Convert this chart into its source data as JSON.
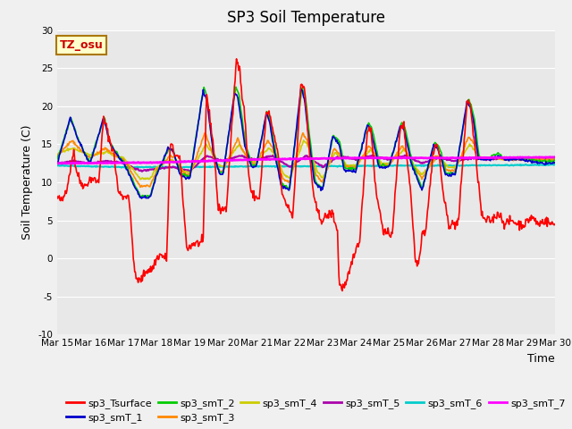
{
  "title": "SP3 Soil Temperature",
  "ylabel": "Soil Temperature (C)",
  "xlabel": "Time",
  "annotation": "TZ_osu",
  "ylim": [
    -10,
    30
  ],
  "fig_facecolor": "#f0f0f0",
  "plot_facecolor": "#e8e8e8",
  "series": {
    "sp3_Tsurface": {
      "color": "#ff0000",
      "lw": 1.2
    },
    "sp3_smT_1": {
      "color": "#0000cc",
      "lw": 1.2
    },
    "sp3_smT_2": {
      "color": "#00cc00",
      "lw": 1.2
    },
    "sp3_smT_3": {
      "color": "#ff8800",
      "lw": 1.2
    },
    "sp3_smT_4": {
      "color": "#cccc00",
      "lw": 1.2
    },
    "sp3_smT_5": {
      "color": "#aa00aa",
      "lw": 1.5
    },
    "sp3_smT_6": {
      "color": "#00cccc",
      "lw": 1.5
    },
    "sp3_smT_7": {
      "color": "#ff00ff",
      "lw": 2.0
    }
  },
  "xtick_labels": [
    "Mar 15",
    "Mar 16",
    "Mar 17",
    "Mar 18",
    "Mar 19",
    "Mar 20",
    "Mar 21",
    "Mar 22",
    "Mar 23",
    "Mar 24",
    "Mar 25",
    "Mar 26",
    "Mar 27",
    "Mar 28",
    "Mar 29",
    "Mar 30"
  ],
  "ytick_labels": [
    -10,
    -5,
    0,
    5,
    10,
    15,
    20,
    25,
    30
  ],
  "grid_color": "#ffffff",
  "title_fontsize": 12,
  "axis_label_fontsize": 9,
  "tick_fontsize": 7.5
}
